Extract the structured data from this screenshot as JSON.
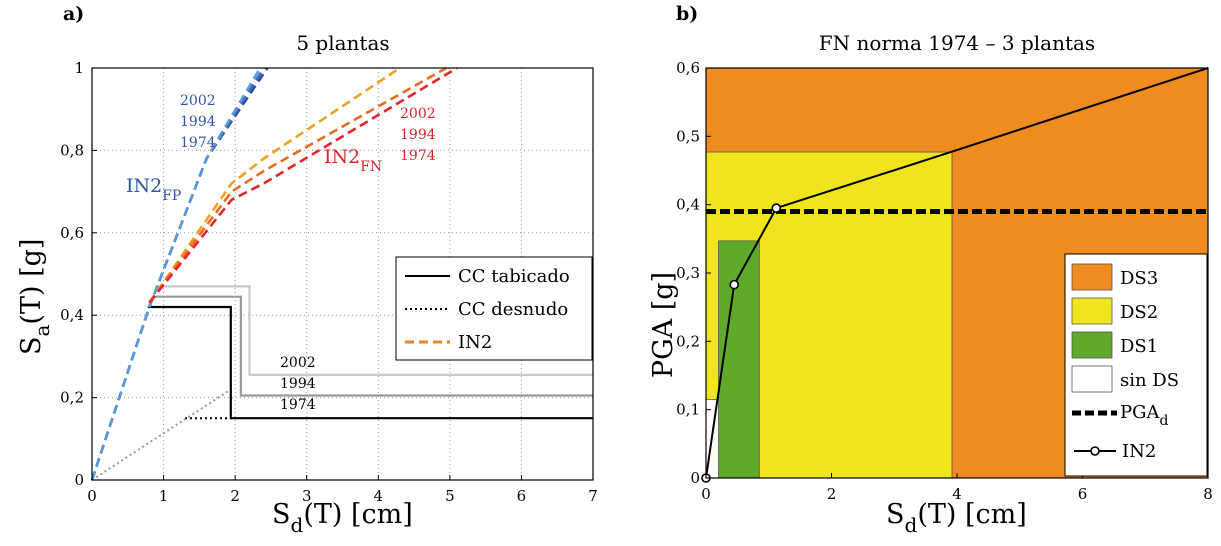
{
  "chart_data": [
    {
      "panel": "a)",
      "type": "line",
      "title": "5 plantas",
      "xlabel": {
        "main": "S",
        "sub": "d",
        "rest": "(T) [cm]"
      },
      "ylabel": {
        "main": "S",
        "sub": "a",
        "rest": "(T) [g]"
      },
      "xlim": [
        0,
        7
      ],
      "ylim": [
        0,
        1
      ],
      "xticks": [
        "0",
        "1",
        "2",
        "3",
        "4",
        "5",
        "6",
        "7"
      ],
      "yticks": [
        "0",
        "0,2",
        "0,4",
        "0,6",
        "0,8",
        "1"
      ],
      "grid": true,
      "legend_position": "right",
      "legend": [
        {
          "label": "CC tabicado",
          "style": "solid",
          "color": "#000000"
        },
        {
          "label": "CC desnudo",
          "style": "dotted",
          "color": "#000000"
        },
        {
          "label": "IN2",
          "style": "dashed",
          "color": "#f07f21"
        }
      ],
      "series": [
        {
          "label": "1974",
          "kind": "capacity_bare",
          "color": "#000000",
          "points": [
            [
              1.3,
              0.15
            ],
            [
              1.94,
              0.15
            ]
          ]
        },
        {
          "label": "",
          "kind": "capacity_bare_common",
          "color": "#999999",
          "points": [
            [
              0,
              0
            ],
            [
              1.94,
              0.22
            ]
          ]
        },
        {
          "label": "1974",
          "kind": "capacity_infilled",
          "color": "#000000",
          "points": [
            [
              0.78,
              0.42
            ],
            [
              1.94,
              0.42
            ],
            [
              1.94,
              0.15
            ],
            [
              7,
              0.15
            ]
          ]
        },
        {
          "label": "1994",
          "kind": "capacity_infilled",
          "color": "#999999",
          "points": [
            [
              0.85,
              0.445
            ],
            [
              2.08,
              0.445
            ],
            [
              2.08,
              0.205
            ],
            [
              7,
              0.205
            ]
          ]
        },
        {
          "label": "2002",
          "kind": "capacity_infilled",
          "color": "#c8c8c8",
          "points": [
            [
              0.9,
              0.47
            ],
            [
              2.2,
              0.47
            ],
            [
              2.2,
              0.255
            ],
            [
              7,
              0.255
            ]
          ]
        },
        {
          "label": "IN2FP 1974",
          "kind": "demand_FP",
          "color": "#2b4e9c",
          "points": [
            [
              0,
              0
            ],
            [
              0.8,
              0.42
            ],
            [
              1.6,
              0.78
            ],
            [
              2.45,
              1.0
            ]
          ]
        },
        {
          "label": "IN2FP 1994",
          "kind": "demand_FP",
          "color": "#3a6cc0",
          "points": [
            [
              0,
              0
            ],
            [
              0.8,
              0.42
            ],
            [
              1.6,
              0.78
            ],
            [
              2.4,
              1.0
            ]
          ]
        },
        {
          "label": "IN2FP 2002",
          "kind": "demand_FP",
          "color": "#5a9bd5",
          "points": [
            [
              0,
              0
            ],
            [
              0.8,
              0.42
            ],
            [
              1.6,
              0.78
            ],
            [
              2.35,
              1.0
            ]
          ]
        },
        {
          "label": "IN2FN 2002",
          "kind": "demand_FN",
          "color": "#f0a020",
          "points": [
            [
              0.8,
              0.43
            ],
            [
              1.95,
              0.72
            ],
            [
              2.4,
              0.78
            ],
            [
              4.3,
              1.0
            ]
          ]
        },
        {
          "label": "IN2FN 1994",
          "kind": "demand_FN",
          "color": "#ea6a22",
          "points": [
            [
              0.8,
              0.43
            ],
            [
              1.95,
              0.7
            ],
            [
              2.4,
              0.75
            ],
            [
              4.95,
              1.0
            ]
          ]
        },
        {
          "label": "IN2FN 1974",
          "kind": "demand_FN",
          "color": "#e0262a",
          "points": [
            [
              0.8,
              0.43
            ],
            [
              1.95,
              0.68
            ],
            [
              2.4,
              0.72
            ],
            [
              5.1,
              1.0
            ]
          ]
        }
      ],
      "annotations": {
        "fp_years": [
          "2002",
          "1994",
          "1974"
        ],
        "fp_label": {
          "main": "IN2",
          "sub": "FP"
        },
        "fn_years": [
          "2002",
          "1994",
          "1974"
        ],
        "fn_label": {
          "main": "IN2",
          "sub": "FN"
        },
        "cap_years": [
          "2002",
          "1994",
          "1974"
        ]
      },
      "colors": {
        "fp": "#2e56a5",
        "fn": "#d9232b",
        "in2": "#f07f21"
      }
    },
    {
      "panel": "b)",
      "type": "area",
      "title": "FN norma 1974 – 3 plantas",
      "xlabel": {
        "main": "S",
        "sub": "d",
        "rest": "(T) [cm]"
      },
      "ylabel": {
        "main": "PGA [g]",
        "sub": "",
        "rest": ""
      },
      "xlim": [
        0,
        8
      ],
      "ylim": [
        0,
        0.6
      ],
      "xticks": [
        "0",
        "2",
        "4",
        "6",
        "8"
      ],
      "yticks": [
        "0",
        "0,1",
        "0,2",
        "0,3",
        "0,4",
        "0,5",
        "0,6"
      ],
      "legend_position": "bottom-right",
      "regions": [
        {
          "label": "DS3",
          "color": "#f08b1f",
          "x": [
            0,
            8
          ],
          "y": [
            0,
            0.6
          ]
        },
        {
          "label": "DS2",
          "color": "#f0e51c",
          "x": [
            0,
            3.92
          ],
          "y": [
            0,
            0.477
          ]
        },
        {
          "label": "DS1",
          "color": "#5eaa2a",
          "x": [
            0.2,
            0.85
          ],
          "y": [
            0,
            0.347
          ]
        },
        {
          "label": "sin DS",
          "color": "#ffffff",
          "x": [
            0,
            0.2
          ],
          "y": [
            0,
            0.115
          ]
        }
      ],
      "pga_d": 0.39,
      "in2_points": [
        [
          0,
          0
        ],
        [
          0.45,
          0.283
        ],
        [
          1.12,
          0.395
        ],
        [
          3.9,
          0.477
        ],
        [
          8,
          0.6
        ]
      ],
      "in2_markers": [
        [
          0,
          0
        ],
        [
          0.45,
          0.283
        ],
        [
          1.12,
          0.395
        ]
      ],
      "legend": [
        {
          "label": "DS3",
          "type": "patch",
          "color": "#f08b1f"
        },
        {
          "label": "DS2",
          "type": "patch",
          "color": "#f0e51c"
        },
        {
          "label": "DS1",
          "type": "patch",
          "color": "#5eaa2a"
        },
        {
          "label": "sin DS",
          "type": "patch",
          "color": "#ffffff"
        },
        {
          "label": "PGA",
          "sub": "d",
          "type": "thickdash",
          "color": "#000000"
        },
        {
          "label": "IN2",
          "type": "marker-line",
          "color": "#000000"
        }
      ]
    }
  ]
}
